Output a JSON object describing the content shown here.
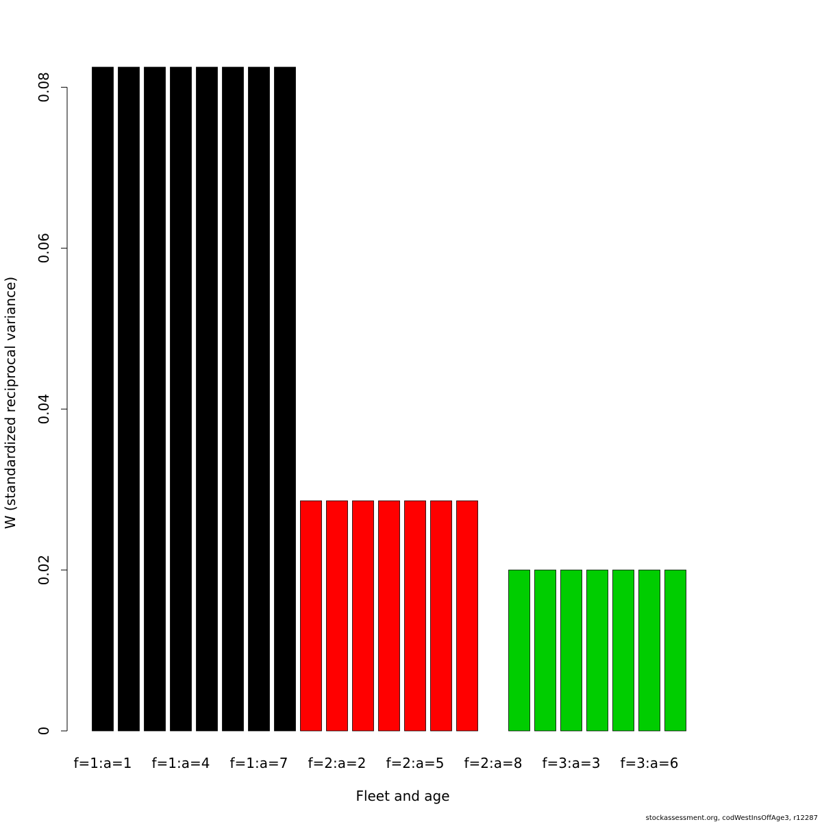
{
  "chart_data": {
    "type": "bar",
    "x_label": "Fleet and age",
    "y_label": "W (standardized reciprocal variance)",
    "footnote": "stockassessment.org, codWestInsOffAge3, r12287",
    "categories": [
      "f=1:a=1",
      null,
      null,
      "f=1:a=4",
      null,
      null,
      "f=1:a=7",
      null,
      null,
      "f=2:a=2",
      null,
      null,
      "f=2:a=5",
      null,
      null,
      "f=2:a=8",
      null,
      null,
      "f=3:a=3",
      null,
      null,
      "f=3:a=6",
      null
    ],
    "values": [
      0.0825,
      0.0825,
      0.0825,
      0.0825,
      0.0825,
      0.0825,
      0.0825,
      0.0825,
      0.0286,
      0.0286,
      0.0286,
      0.0286,
      0.0286,
      0.0286,
      0.0286,
      0,
      0.02,
      0.02,
      0.02,
      0.02,
      0.02,
      0.02,
      0.02
    ],
    "colors": [
      "#000000",
      "#000000",
      "#000000",
      "#000000",
      "#000000",
      "#000000",
      "#000000",
      "#000000",
      "#ff0000",
      "#ff0000",
      "#ff0000",
      "#ff0000",
      "#ff0000",
      "#ff0000",
      "#ff0000",
      "#ff0000",
      "#00cd00",
      "#00cd00",
      "#00cd00",
      "#00cd00",
      "#00cd00",
      "#00cd00",
      "#00cd00"
    ],
    "ylim": [
      0,
      0.0825
    ],
    "yticks": [
      0,
      0.02,
      0.04,
      0.06,
      0.08
    ]
  }
}
